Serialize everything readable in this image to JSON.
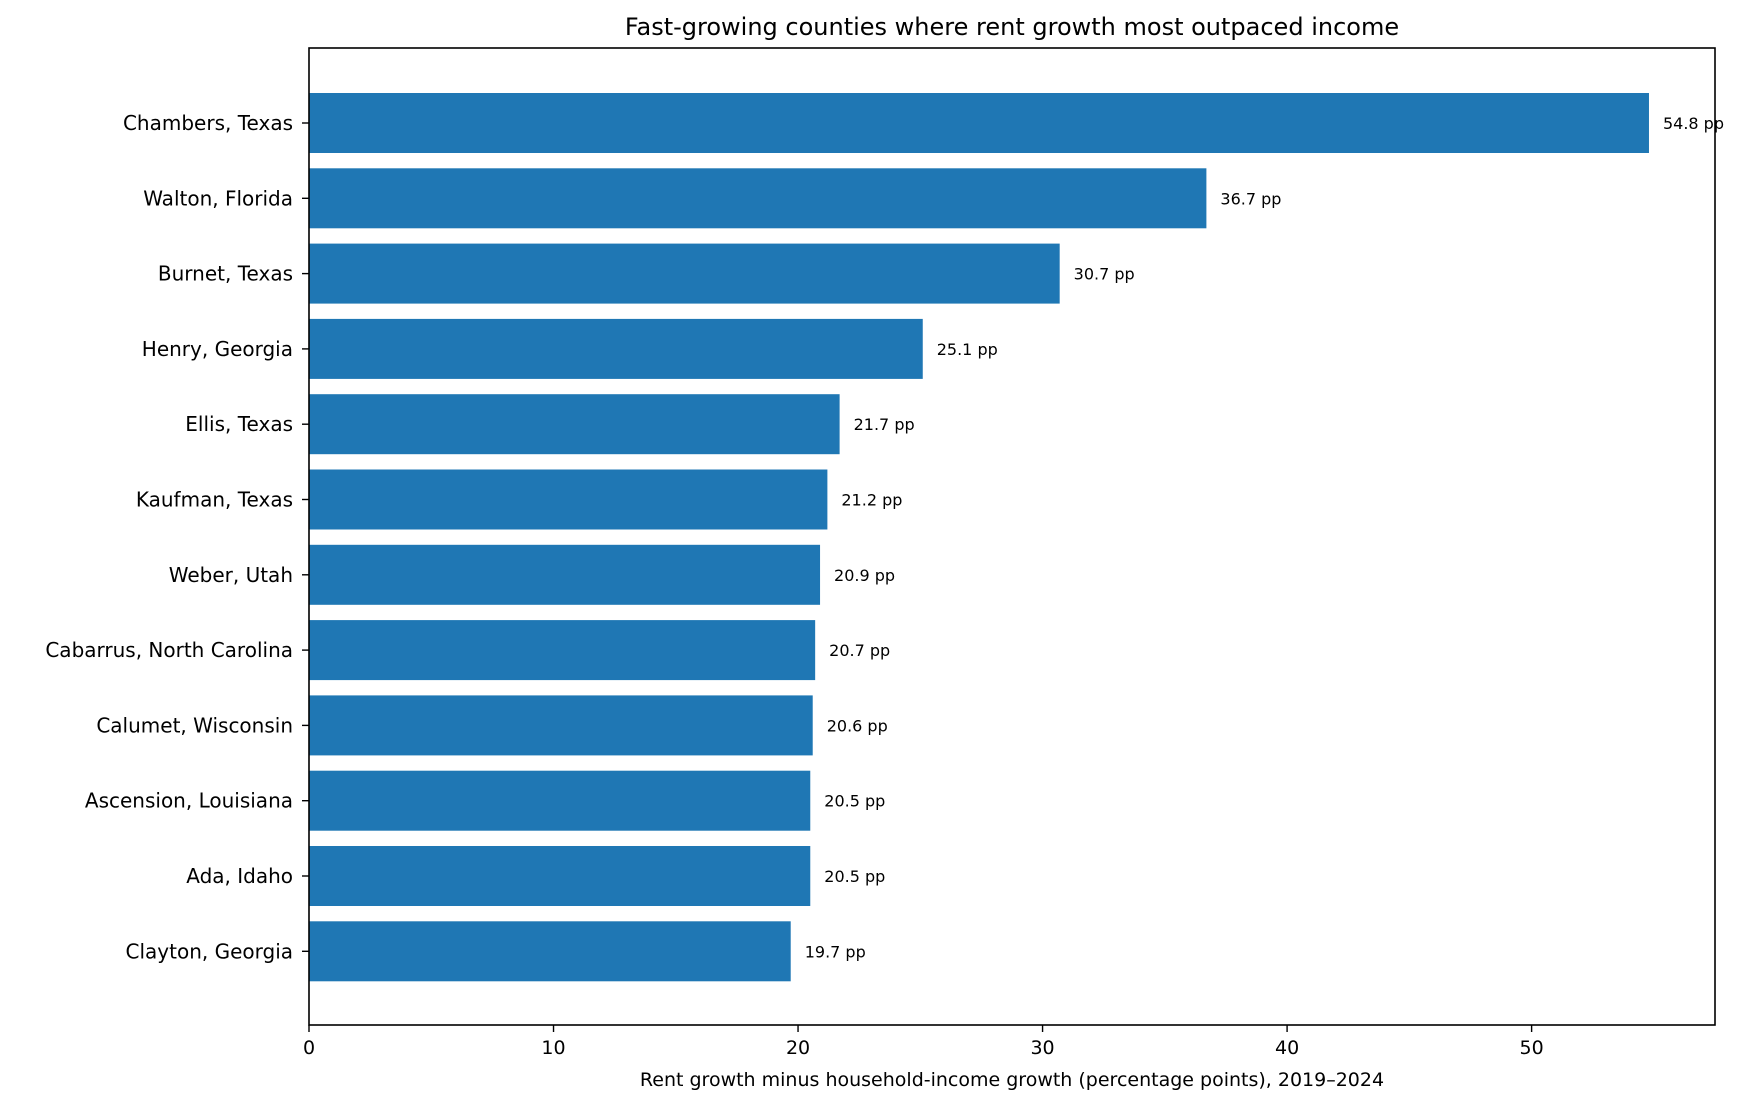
{
  "chart_data": {
    "type": "bar",
    "orientation": "horizontal",
    "title": "Fast-growing counties where rent growth most outpaced income",
    "xlabel": "Rent growth minus household-income growth (percentage points), 2019–2024",
    "ylabel": "",
    "xlim": [
      0,
      57.5
    ],
    "xticks": [
      0,
      10,
      20,
      30,
      40,
      50
    ],
    "grid": false,
    "bar_color": "#1f77b4",
    "value_suffix": " pp",
    "categories": [
      "Chambers, Texas",
      "Walton, Florida",
      "Burnet, Texas",
      "Henry, Georgia",
      "Ellis, Texas",
      "Kaufman, Texas",
      "Weber, Utah",
      "Cabarrus, North Carolina",
      "Calumet, Wisconsin",
      "Ascension, Louisiana",
      "Ada, Idaho",
      "Clayton, Georgia"
    ],
    "values": [
      54.8,
      36.7,
      30.7,
      25.1,
      21.7,
      21.2,
      20.9,
      20.7,
      20.6,
      20.5,
      20.5,
      19.7
    ],
    "data_labels": [
      "54.8 pp",
      "36.7 pp",
      "30.7 pp",
      "25.1 pp",
      "21.7 pp",
      "21.2 pp",
      "20.9 pp",
      "20.7 pp",
      "20.6 pp",
      "20.5 pp",
      "20.5 pp",
      "19.7 pp"
    ]
  }
}
